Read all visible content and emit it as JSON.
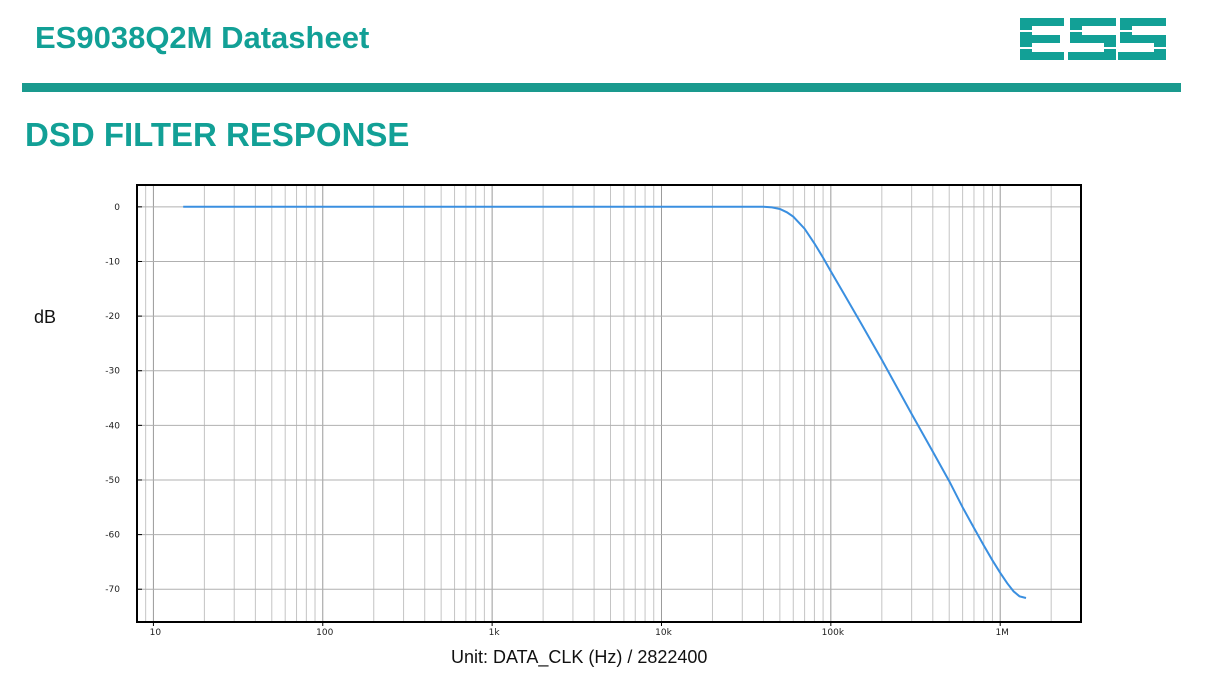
{
  "header": {
    "title": "ES9038Q2M Datasheet",
    "logo_text": "ESS",
    "accent_color": "#12a096",
    "rule_color": "#1a9a8e"
  },
  "section": {
    "title": "DSD FILTER RESPONSE"
  },
  "chart_data": {
    "type": "line",
    "title": "",
    "xlabel": "Unit: DATA_CLK (Hz) / 2822400",
    "ylabel": "dB",
    "xscale": "log",
    "xlim": [
      8,
      3000000
    ],
    "ylim": [
      -76,
      4
    ],
    "grid": true,
    "line_color": "#3a8fe0",
    "x_tick_labels": [
      {
        "value": 10,
        "label": "10"
      },
      {
        "value": 100,
        "label": "100"
      },
      {
        "value": 1000,
        "label": "1k"
      },
      {
        "value": 10000,
        "label": "10k"
      },
      {
        "value": 100000,
        "label": "100k"
      },
      {
        "value": 1000000,
        "label": "1M"
      }
    ],
    "y_tick_labels": [
      {
        "value": 0,
        "label": "0"
      },
      {
        "value": -10,
        "label": "-10"
      },
      {
        "value": -20,
        "label": "-20"
      },
      {
        "value": -30,
        "label": "-30"
      },
      {
        "value": -40,
        "label": "-40"
      },
      {
        "value": -50,
        "label": "-50"
      },
      {
        "value": -60,
        "label": "-60"
      },
      {
        "value": -70,
        "label": "-70"
      }
    ],
    "series": [
      {
        "x": [
          15,
          100,
          1000,
          10000,
          30000,
          40000,
          45000,
          50000,
          55000,
          60000,
          70000,
          80000,
          90000,
          100000,
          120000,
          150000,
          200000,
          300000,
          400000,
          500000,
          600000,
          700000,
          800000,
          900000,
          1000000,
          1100000,
          1200000,
          1300000,
          1420000
        ],
        "y": [
          0,
          0,
          0,
          0,
          0,
          0,
          -0.1,
          -0.4,
          -1.0,
          -1.8,
          -4.0,
          -6.7,
          -9.3,
          -11.8,
          -16.0,
          -21.2,
          -28.0,
          -37.9,
          -44.8,
          -50.2,
          -55.0,
          -58.8,
          -62.0,
          -64.7,
          -67.0,
          -68.9,
          -70.4,
          -71.3,
          -71.6
        ]
      }
    ]
  }
}
